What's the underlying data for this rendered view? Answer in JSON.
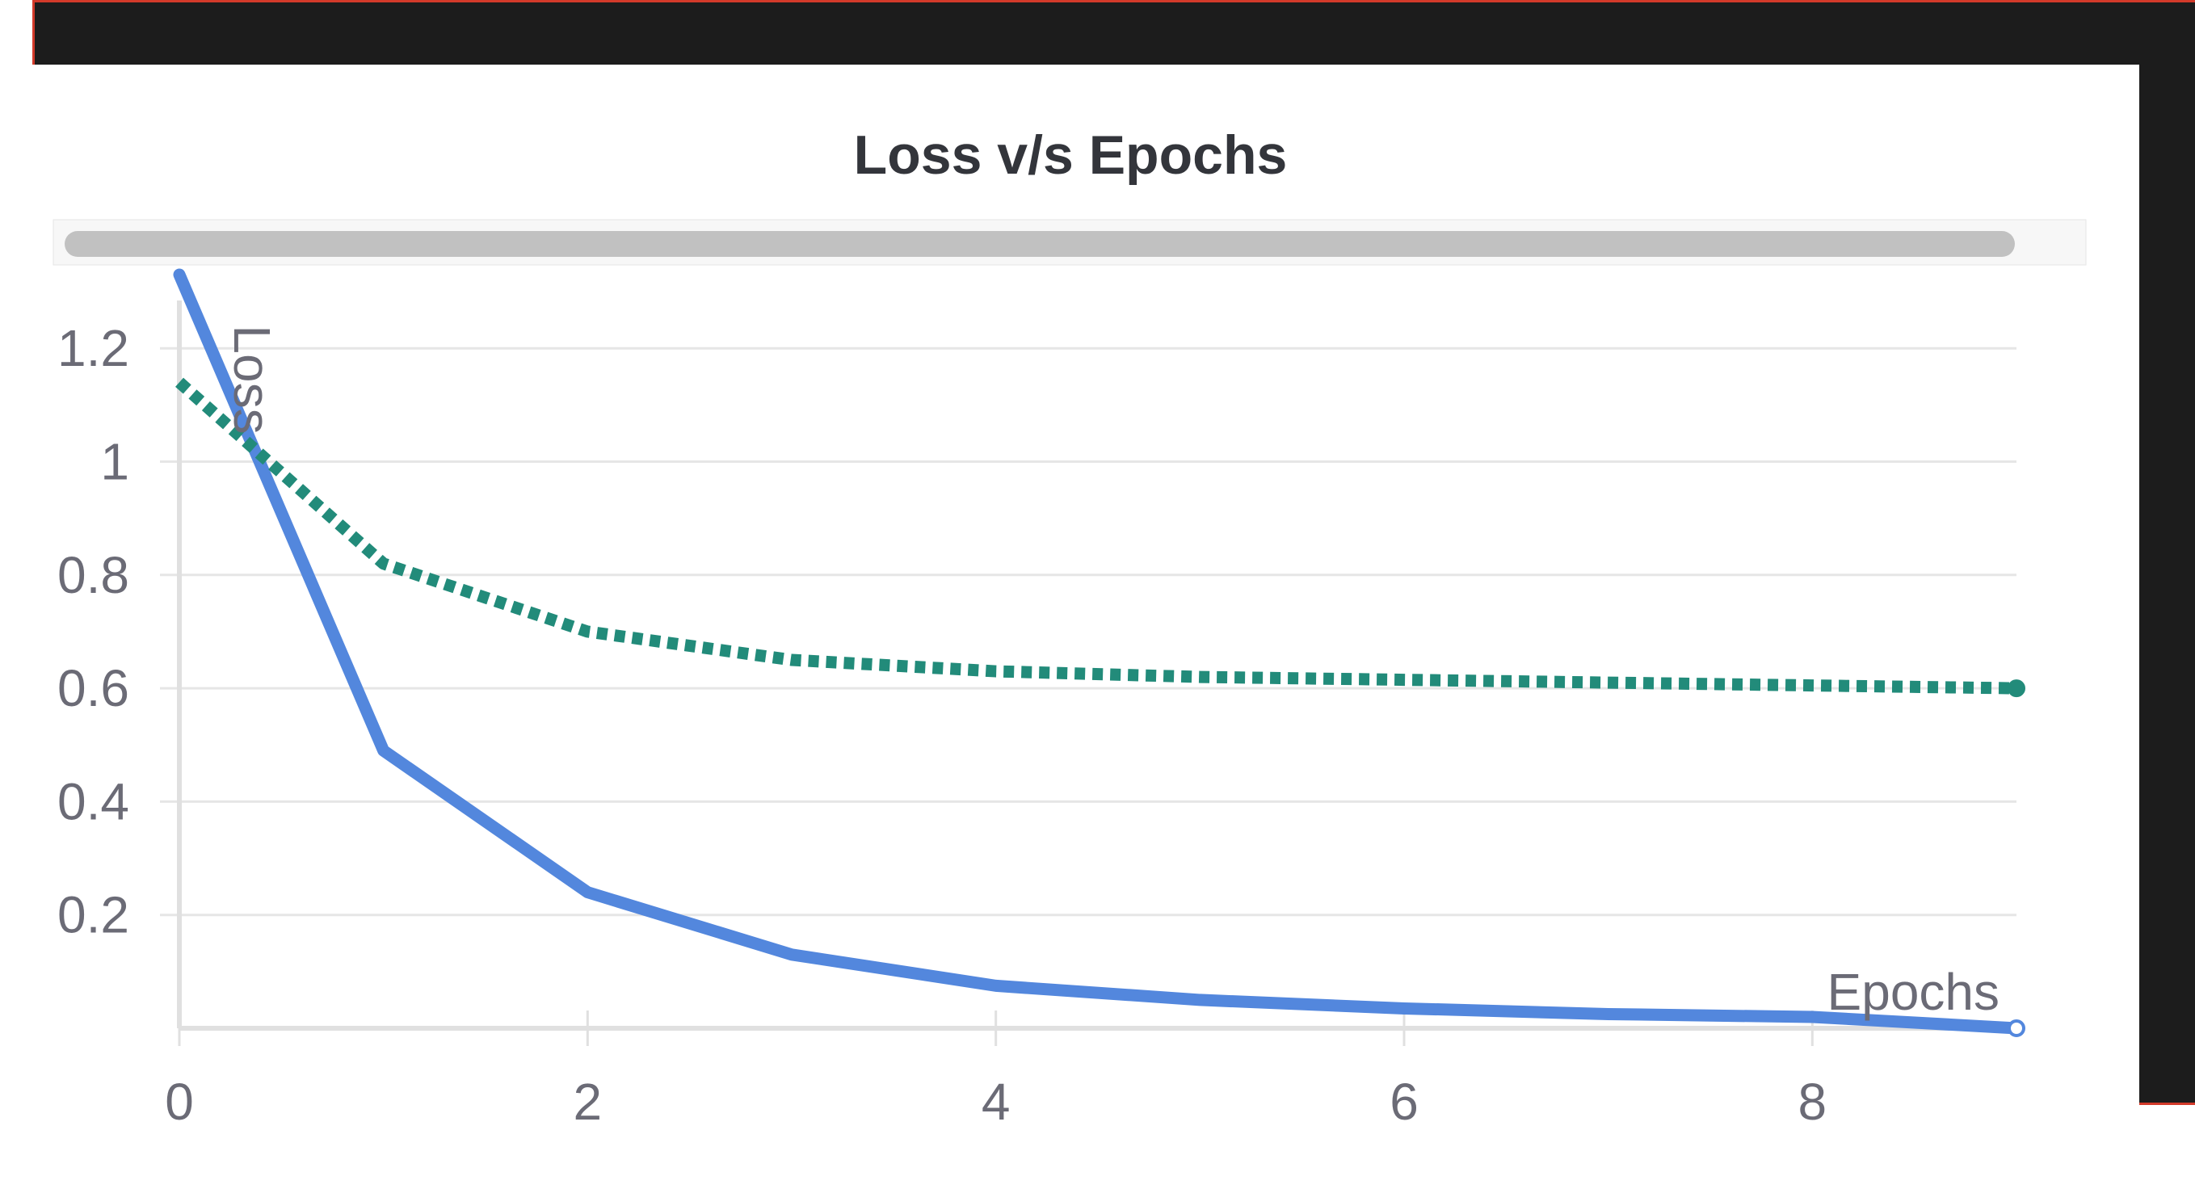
{
  "colors": {
    "frame": "#1c1c1c",
    "frame_edge": "#d23a2a",
    "panel_bg": "#ffffff",
    "scrollbar_track": "#f7f7f7",
    "scrollbar_thumb": "#c1c1c1",
    "grid": "#e6e6e6",
    "axis": "#e0e0e0",
    "tick_text": "#6b6b76",
    "title_text": "#33353b"
  },
  "chart_data": {
    "type": "line",
    "title": "Loss v/s Epochs",
    "xlabel": "Epochs",
    "ylabel": "Loss",
    "xlim": [
      0,
      9
    ],
    "ylim": [
      0,
      1.33
    ],
    "x_ticks": [
      0,
      2,
      4,
      6,
      8
    ],
    "x_tick_labels": [
      "0",
      "2",
      "4",
      "6",
      "8"
    ],
    "y_ticks": [
      0.2,
      0.4,
      0.6,
      0.8,
      1.0,
      1.2
    ],
    "y_tick_labels": [
      "0.2",
      "0.4",
      "0.6",
      "0.8",
      "1",
      "1.2"
    ],
    "grid": true,
    "x": [
      0,
      1,
      2,
      3,
      4,
      5,
      6,
      7,
      8,
      9
    ],
    "series": [
      {
        "values": [
          1.33,
          0.49,
          0.24,
          0.13,
          0.075,
          0.05,
          0.035,
          0.025,
          0.02,
          0.0
        ],
        "color": "#5387dd",
        "style": "solid"
      },
      {
        "values": [
          1.14,
          0.82,
          0.7,
          0.65,
          0.63,
          0.62,
          0.615,
          0.61,
          0.605,
          0.6
        ],
        "color": "#228b7a",
        "style": "dotted"
      }
    ]
  }
}
